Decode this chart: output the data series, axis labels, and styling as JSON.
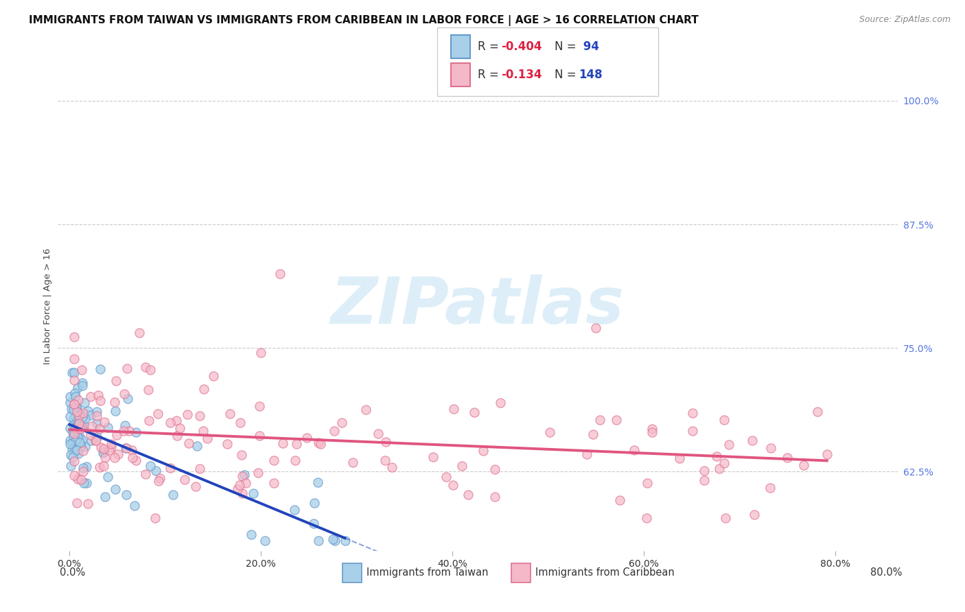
{
  "title": "IMMIGRANTS FROM TAIWAN VS IMMIGRANTS FROM CARIBBEAN IN LABOR FORCE | AGE > 16 CORRELATION CHART",
  "source": "Source: ZipAtlas.com",
  "ylabel": "In Labor Force | Age > 16",
  "x_tick_values": [
    0.0,
    0.2,
    0.4,
    0.6,
    0.8
  ],
  "y_tick_values": [
    0.625,
    0.75,
    0.875,
    1.0
  ],
  "ylim": [
    0.545,
    1.04
  ],
  "xlim": [
    -0.012,
    0.865
  ],
  "taiwan_R": -0.404,
  "taiwan_N": 94,
  "caribbean_R": -0.134,
  "caribbean_N": 148,
  "taiwan_color": "#A8D0E8",
  "taiwan_edge_color": "#6699CC",
  "caribbean_color": "#F5B8C8",
  "caribbean_edge_color": "#E07090",
  "taiwan_line_color": "#2244BB",
  "caribbean_line_color": "#E05580",
  "taiwan_legend_label": "Immigrants from Taiwan",
  "caribbean_legend_label": "Immigrants from Caribbean",
  "watermark": "ZIPatlas",
  "watermark_color": "#DDEEF8",
  "title_fontsize": 11,
  "axis_label_fontsize": 9.5,
  "tick_fontsize": 10,
  "right_tick_color": "#5577DD",
  "background_color": "#FFFFFF",
  "legend_text_color": "#5577DD",
  "legend_R_color": "#CC2244",
  "grid_color": "#CCCCCC",
  "bottom_legend_color": "#333333"
}
